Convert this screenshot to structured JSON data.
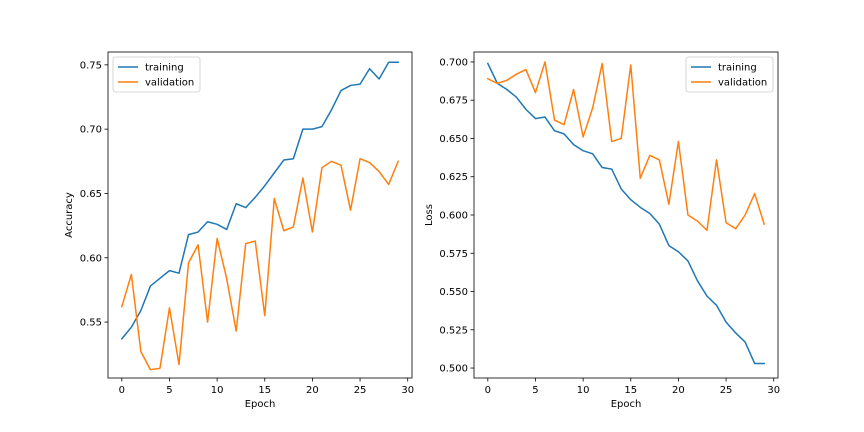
{
  "chart_data": [
    {
      "type": "line",
      "xlabel": "Epoch",
      "ylabel": "Accuracy",
      "xlim": [
        -1.45,
        30.45
      ],
      "ylim": [
        0.5065,
        0.76
      ],
      "xticks": [
        0,
        5,
        10,
        15,
        20,
        25,
        30
      ],
      "yticks": [
        0.55,
        0.6,
        0.65,
        0.7,
        0.75
      ],
      "ytick_labels": [
        "0.55",
        "0.60",
        "0.65",
        "0.70",
        "0.75"
      ],
      "legend_position": "top-left",
      "x": [
        0,
        1,
        2,
        3,
        4,
        5,
        6,
        7,
        8,
        9,
        10,
        11,
        12,
        13,
        14,
        15,
        16,
        17,
        18,
        19,
        20,
        21,
        22,
        23,
        24,
        25,
        26,
        27,
        28,
        29
      ],
      "series": [
        {
          "name": "training",
          "color": "#1f77b4",
          "values": [
            0.537,
            0.546,
            0.559,
            0.578,
            0.584,
            0.59,
            0.588,
            0.618,
            0.62,
            0.628,
            0.626,
            0.622,
            0.642,
            0.639,
            0.647,
            0.656,
            0.666,
            0.676,
            0.677,
            0.7,
            0.7,
            0.702,
            0.715,
            0.73,
            0.734,
            0.735,
            0.747,
            0.739,
            0.752,
            0.752
          ]
        },
        {
          "name": "validation",
          "color": "#ff7f0e",
          "values": [
            0.562,
            0.587,
            0.527,
            0.513,
            0.514,
            0.561,
            0.517,
            0.596,
            0.61,
            0.55,
            0.615,
            0.584,
            0.543,
            0.611,
            0.613,
            0.555,
            0.646,
            0.621,
            0.624,
            0.662,
            0.62,
            0.67,
            0.675,
            0.672,
            0.637,
            0.677,
            0.674,
            0.667,
            0.657,
            0.675
          ]
        }
      ]
    },
    {
      "type": "line",
      "xlabel": "Epoch",
      "ylabel": "Loss",
      "xlim": [
        -1.45,
        30.45
      ],
      "ylim": [
        0.4935,
        0.7065
      ],
      "xticks": [
        0,
        5,
        10,
        15,
        20,
        25,
        30
      ],
      "yticks": [
        0.5,
        0.525,
        0.55,
        0.575,
        0.6,
        0.625,
        0.65,
        0.675,
        0.7
      ],
      "ytick_labels": [
        "0.500",
        "0.525",
        "0.550",
        "0.575",
        "0.600",
        "0.625",
        "0.650",
        "0.675",
        "0.700"
      ],
      "legend_position": "top-right",
      "x": [
        0,
        1,
        2,
        3,
        4,
        5,
        6,
        7,
        8,
        9,
        10,
        11,
        12,
        13,
        14,
        15,
        16,
        17,
        18,
        19,
        20,
        21,
        22,
        23,
        24,
        25,
        26,
        27,
        28,
        29
      ],
      "series": [
        {
          "name": "training",
          "color": "#1f77b4",
          "values": [
            0.699,
            0.686,
            0.682,
            0.677,
            0.669,
            0.663,
            0.664,
            0.655,
            0.653,
            0.646,
            0.642,
            0.64,
            0.631,
            0.63,
            0.617,
            0.61,
            0.605,
            0.601,
            0.594,
            0.58,
            0.576,
            0.57,
            0.557,
            0.547,
            0.541,
            0.53,
            0.523,
            0.517,
            0.503,
            0.503
          ]
        },
        {
          "name": "validation",
          "color": "#ff7f0e",
          "values": [
            0.689,
            0.686,
            0.688,
            0.692,
            0.695,
            0.68,
            0.7,
            0.662,
            0.659,
            0.682,
            0.651,
            0.67,
            0.699,
            0.648,
            0.65,
            0.698,
            0.624,
            0.639,
            0.636,
            0.607,
            0.648,
            0.6,
            0.596,
            0.59,
            0.636,
            0.595,
            0.591,
            0.6,
            0.614,
            0.594
          ]
        }
      ]
    }
  ]
}
